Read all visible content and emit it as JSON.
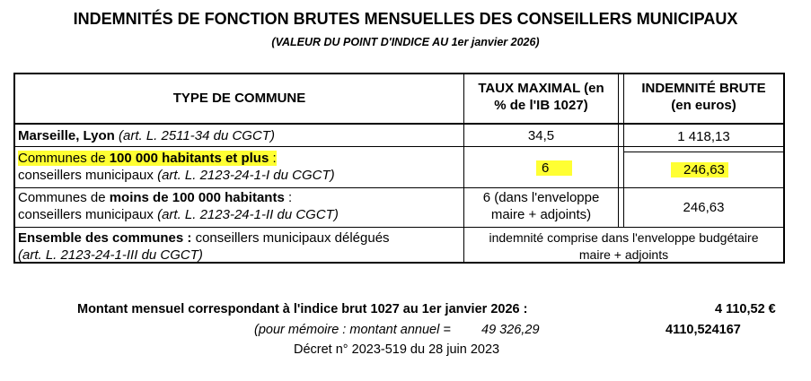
{
  "header": {
    "title": "INDEMNITÉS DE FONCTION BRUTES MENSUELLES DES CONSEILLERS MUNICIPAUX",
    "subtitle": "(VALEUR DU POINT D'INDICE AU 1er janvier 2026)"
  },
  "table": {
    "columns": {
      "type": "TYPE DE COMMUNE",
      "taux_line1": "TAUX MAXIMAL (en",
      "taux_line2": "% de l'IB 1027)",
      "indemnite_line1": "INDEMNITÉ BRUTE",
      "indemnite_line2": "(en euros)"
    },
    "rows": [
      {
        "type_bold": "Marseille, Lyon",
        "type_italic": "(art. L. 2511-34 du CGCT)",
        "taux": "34,5",
        "indemnite": "1 418,13"
      },
      {
        "type_pre": "Communes de",
        "type_bold": "100 000 habitants et plus",
        "type_post": ":",
        "type_line2": "conseillers municipaux",
        "type_italic": "(art. L. 2123-24-1-I du CGCT)",
        "taux": "6",
        "indemnite": "246,63"
      },
      {
        "type_pre": "Communes de",
        "type_bold": "moins de 100 000 habitants",
        "type_post": ":",
        "type_line2": "conseillers municipaux",
        "type_italic": "(art. L. 2123-24-1-II du CGCT)",
        "taux_line1": "6 (dans l'enveloppe",
        "taux_line2": "maire + adjoints)",
        "indemnite": "246,63"
      },
      {
        "type_bold": "Ensemble des communes :",
        "type_rest": "conseillers municipaux délégués",
        "type_italic": "(art. L. 2123-24-1-III du CGCT)",
        "merged_line1": "indemnité comprise dans l'enveloppe budgétaire",
        "merged_line2": "maire + adjoints"
      }
    ]
  },
  "footer": {
    "montant_label": "Montant mensuel correspondant à l'indice brut 1027 au 1er janvier 2026 :",
    "montant_value": "4 110,52 €",
    "memo_label": "(pour mémoire : montant annuel =",
    "memo_value": "49 326,29",
    "raw_value": "4110,524167",
    "decret": "Décret n° 2023-519 du 28 juin 2023"
  },
  "colors": {
    "highlight": "#ffff33"
  }
}
